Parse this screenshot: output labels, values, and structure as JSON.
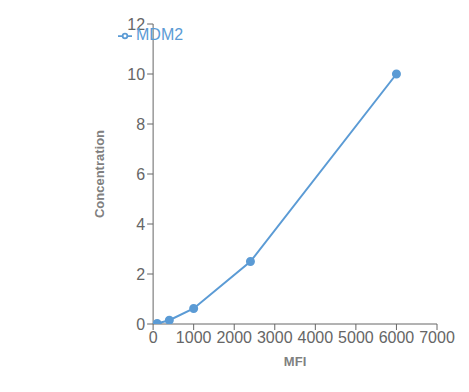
{
  "chart_data": {
    "type": "line",
    "x": [
      100,
      400,
      1000,
      2400,
      6000
    ],
    "series": [
      {
        "name": "MDM2",
        "color": "#5b9bd5",
        "values": [
          0.02,
          0.15,
          0.62,
          2.5,
          10.0
        ],
        "marker": "circle"
      }
    ],
    "xlabel": "MFI",
    "ylabel": "Concentration",
    "xlim": [
      0,
      7000
    ],
    "ylim": [
      0,
      12
    ],
    "xticks": [
      0,
      1000,
      2000,
      3000,
      4000,
      5000,
      6000,
      7000
    ],
    "yticks": [
      0,
      2,
      4,
      6,
      8,
      10,
      12
    ],
    "grid": false,
    "legend": "upper left"
  }
}
